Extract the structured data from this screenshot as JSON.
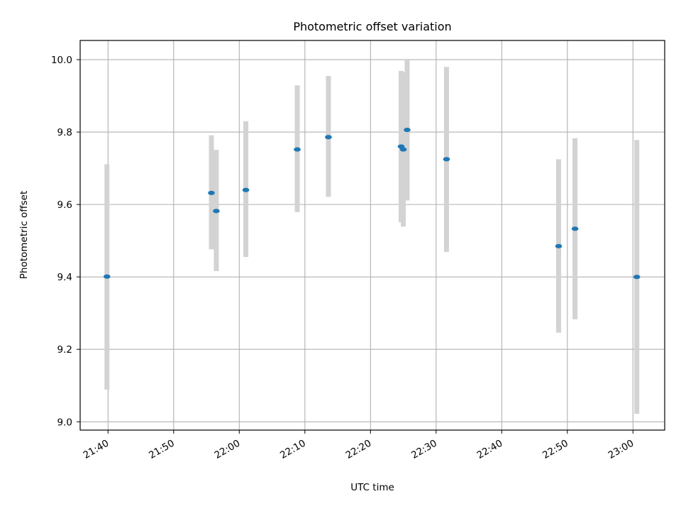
{
  "chart_data": {
    "type": "scatter",
    "title": "Photometric offset variation",
    "xlabel": "UTC time",
    "ylabel": "Photometric offset",
    "x_ticks": [
      "21:40",
      "21:50",
      "22:00",
      "22:10",
      "22:20",
      "22:30",
      "22:40",
      "22:50",
      "23:00"
    ],
    "y_ticks": [
      "9.0",
      "9.2",
      "9.4",
      "9.6",
      "9.8",
      "10.0"
    ],
    "xlim": [
      "21:35:45",
      "23:04:50"
    ],
    "ylim": [
      8.977,
      10.053
    ],
    "grid": true,
    "colors": {
      "marker": "#1f77b4",
      "errorbar": "#d3d3d3",
      "grid": "#b0b0b0",
      "axes": "#000000"
    },
    "points": [
      {
        "x": "21:39:50",
        "y": 9.401,
        "yerr_low": 9.089,
        "yerr_high": 9.711
      },
      {
        "x": "21:55:45",
        "y": 9.632,
        "yerr_low": 9.476,
        "yerr_high": 9.791
      },
      {
        "x": "21:56:30",
        "y": 9.582,
        "yerr_low": 9.416,
        "yerr_high": 9.751
      },
      {
        "x": "22:01:00",
        "y": 9.64,
        "yerr_low": 9.455,
        "yerr_high": 9.83
      },
      {
        "x": "22:08:50",
        "y": 9.752,
        "yerr_low": 9.579,
        "yerr_high": 9.929
      },
      {
        "x": "22:13:35",
        "y": 9.786,
        "yerr_low": 9.621,
        "yerr_high": 9.955
      },
      {
        "x": "22:24:40",
        "y": 9.76,
        "yerr_low": 9.551,
        "yerr_high": 9.969
      },
      {
        "x": "22:25:00",
        "y": 9.752,
        "yerr_low": 9.539,
        "yerr_high": 9.965
      },
      {
        "x": "22:25:35",
        "y": 9.806,
        "yerr_low": 9.611,
        "yerr_high": 10.002
      },
      {
        "x": "22:31:35",
        "y": 9.725,
        "yerr_low": 9.469,
        "yerr_high": 9.98
      },
      {
        "x": "22:48:40",
        "y": 9.485,
        "yerr_low": 9.246,
        "yerr_high": 9.725
      },
      {
        "x": "22:51:10",
        "y": 9.533,
        "yerr_low": 9.283,
        "yerr_high": 9.783
      },
      {
        "x": "23:00:35",
        "y": 9.4,
        "yerr_low": 9.022,
        "yerr_high": 9.778
      }
    ]
  }
}
